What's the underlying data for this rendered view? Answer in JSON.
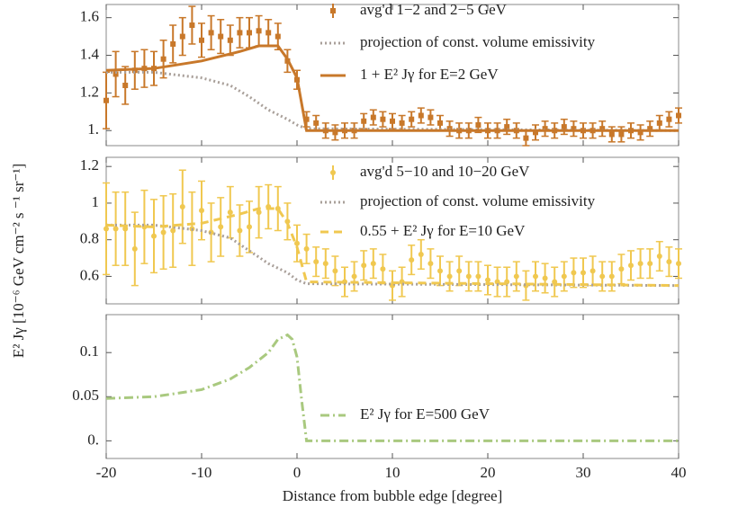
{
  "chart_data": [
    {
      "type": "line",
      "xlim": [
        -20,
        40
      ],
      "ylim": [
        0.92,
        1.67
      ],
      "yticks": [
        1.6,
        1.4,
        1.2,
        {
          "value": 1,
          "label": "1."
        }
      ],
      "series": [
        {
          "name": "avg'd 1−2 and 2−5 GeV",
          "color": "#c8782a",
          "style": "markers",
          "marker": "square",
          "x": [
            -20,
            -19,
            -18,
            -17,
            -16,
            -15,
            -14,
            -13,
            -12,
            -11,
            -10,
            -9,
            -8,
            -7,
            -6,
            -5,
            -4,
            -3,
            -2,
            -1,
            0,
            1,
            2,
            3,
            4,
            5,
            6,
            7,
            8,
            9,
            10,
            11,
            12,
            13,
            14,
            15,
            16,
            17,
            18,
            19,
            20,
            21,
            22,
            23,
            24,
            25,
            26,
            27,
            28,
            29,
            30,
            31,
            32,
            33,
            34,
            35,
            36,
            37,
            38,
            39,
            40
          ],
          "values": [
            1.16,
            1.3,
            1.24,
            1.32,
            1.33,
            1.33,
            1.38,
            1.46,
            1.5,
            1.56,
            1.48,
            1.52,
            1.5,
            1.48,
            1.52,
            1.52,
            1.53,
            1.52,
            1.5,
            1.37,
            1.27,
            1.06,
            1.04,
            1.0,
            0.99,
            1.0,
            1.0,
            1.05,
            1.07,
            1.06,
            1.05,
            1.04,
            1.06,
            1.08,
            1.07,
            1.04,
            1.01,
            1.0,
            1.0,
            1.03,
            1.0,
            1.0,
            1.02,
            1.0,
            0.96,
            0.99,
            1.01,
            1.0,
            1.02,
            1.01,
            1.0,
            1.0,
            1.01,
            0.98,
            0.98,
            1.0,
            0.99,
            1.01,
            1.04,
            1.06,
            1.08
          ],
          "errors": [
            0.15,
            0.12,
            0.1,
            0.1,
            0.1,
            0.09,
            0.1,
            0.1,
            0.1,
            0.1,
            0.09,
            0.09,
            0.09,
            0.08,
            0.08,
            0.08,
            0.08,
            0.07,
            0.07,
            0.06,
            0.05,
            0.04,
            0.04,
            0.04,
            0.04,
            0.04,
            0.04,
            0.04,
            0.04,
            0.04,
            0.04,
            0.04,
            0.04,
            0.04,
            0.04,
            0.04,
            0.04,
            0.04,
            0.04,
            0.04,
            0.04,
            0.04,
            0.04,
            0.04,
            0.04,
            0.04,
            0.04,
            0.04,
            0.04,
            0.04,
            0.04,
            0.04,
            0.04,
            0.04,
            0.04,
            0.04,
            0.04,
            0.04,
            0.04,
            0.04,
            0.04
          ]
        },
        {
          "name": "projection of const. volume emissivity",
          "color": "#a9a09a",
          "style": "dotted",
          "x": [
            -20,
            -15,
            -10,
            -7,
            -5,
            -3,
            -1,
            0,
            1,
            40
          ],
          "values": [
            1.31,
            1.31,
            1.28,
            1.24,
            1.18,
            1.11,
            1.06,
            1.03,
            1.01,
            1.0
          ]
        },
        {
          "name": "1 + E² Jγ for E=2 GeV",
          "color": "#c8782a",
          "style": "solid",
          "x": [
            -20,
            -15,
            -10,
            -6,
            -4,
            -2,
            -1,
            0,
            1,
            40
          ],
          "values": [
            1.32,
            1.33,
            1.37,
            1.42,
            1.45,
            1.45,
            1.38,
            1.28,
            1.0,
            1.0
          ]
        }
      ]
    },
    {
      "type": "line",
      "xlim": [
        -20,
        40
      ],
      "ylim": [
        0.45,
        1.25
      ],
      "yticks": [
        1.2,
        1,
        0.8,
        0.6
      ],
      "ylabel": "E² Jγ [10⁻⁶ GeV cm⁻² s ⁻¹ sr⁻¹]",
      "series": [
        {
          "name": "avg'd 5−10 and 10−20 GeV",
          "color": "#f0c850",
          "style": "markers",
          "marker": "circle",
          "x": [
            -20,
            -19,
            -18,
            -17,
            -16,
            -15,
            -14,
            -13,
            -12,
            -11,
            -10,
            -9,
            -8,
            -7,
            -6,
            -5,
            -4,
            -3,
            -2,
            -1,
            0,
            1,
            2,
            3,
            4,
            5,
            6,
            7,
            8,
            9,
            10,
            11,
            12,
            13,
            14,
            15,
            16,
            17,
            18,
            19,
            20,
            21,
            22,
            23,
            24,
            25,
            26,
            27,
            28,
            29,
            30,
            31,
            32,
            33,
            34,
            35,
            36,
            37,
            38,
            39,
            40
          ],
          "values": [
            0.86,
            0.86,
            0.86,
            0.75,
            0.87,
            0.82,
            0.84,
            0.85,
            0.98,
            0.86,
            0.96,
            0.84,
            0.87,
            0.95,
            0.85,
            0.87,
            0.95,
            0.98,
            0.97,
            0.9,
            0.78,
            0.75,
            0.68,
            0.67,
            0.63,
            0.57,
            0.6,
            0.66,
            0.67,
            0.64,
            0.55,
            0.57,
            0.69,
            0.72,
            0.67,
            0.63,
            0.6,
            0.63,
            0.6,
            0.6,
            0.58,
            0.57,
            0.57,
            0.6,
            0.55,
            0.6,
            0.59,
            0.57,
            0.6,
            0.62,
            0.62,
            0.63,
            0.6,
            0.6,
            0.64,
            0.66,
            0.67,
            0.67,
            0.71,
            0.68,
            0.67
          ],
          "errors": [
            0.25,
            0.2,
            0.2,
            0.2,
            0.2,
            0.2,
            0.2,
            0.2,
            0.2,
            0.2,
            0.16,
            0.16,
            0.16,
            0.14,
            0.14,
            0.14,
            0.14,
            0.12,
            0.12,
            0.1,
            0.1,
            0.08,
            0.08,
            0.08,
            0.08,
            0.08,
            0.08,
            0.08,
            0.08,
            0.08,
            0.08,
            0.08,
            0.08,
            0.08,
            0.08,
            0.08,
            0.08,
            0.08,
            0.08,
            0.08,
            0.08,
            0.08,
            0.08,
            0.08,
            0.08,
            0.08,
            0.08,
            0.08,
            0.08,
            0.08,
            0.08,
            0.08,
            0.08,
            0.08,
            0.08,
            0.08,
            0.08,
            0.08,
            0.08,
            0.08,
            0.08
          ]
        },
        {
          "name": "projection of const. volume emissivity",
          "color": "#a9a09a",
          "style": "dotted",
          "x": [
            -20,
            -15,
            -10,
            -7,
            -5,
            -3,
            -1,
            0,
            1,
            40
          ],
          "values": [
            0.88,
            0.88,
            0.85,
            0.81,
            0.74,
            0.67,
            0.62,
            0.58,
            0.56,
            0.55
          ]
        },
        {
          "name": "0.55 + E² Jγ for E=10 GeV",
          "color": "#f0c850",
          "style": "dashed",
          "x": [
            -20,
            -15,
            -10,
            -6,
            -4,
            -2,
            -1,
            0,
            1,
            40
          ],
          "values": [
            0.88,
            0.87,
            0.89,
            0.94,
            0.97,
            0.97,
            0.89,
            0.76,
            0.57,
            0.55
          ]
        }
      ]
    },
    {
      "type": "line",
      "xlim": [
        -20,
        40
      ],
      "ylim": [
        -0.02,
        0.143
      ],
      "yticks": [
        0.1,
        0.05,
        {
          "value": 0,
          "label": "0."
        }
      ],
      "xticks": [
        -20,
        -10,
        0,
        10,
        20,
        30,
        40
      ],
      "xlabel": "Distance from bubble edge [degree]",
      "series": [
        {
          "name": "E² Jγ for E=500 GeV",
          "color": "#a9c97f",
          "style": "dashdot",
          "x": [
            -20,
            -15,
            -10,
            -7,
            -5,
            -3,
            -2,
            -1,
            -0.5,
            0,
            0.5,
            1,
            40
          ],
          "values": [
            0.048,
            0.05,
            0.058,
            0.07,
            0.083,
            0.1,
            0.115,
            0.12,
            0.115,
            0.095,
            0.045,
            0,
            0
          ]
        }
      ]
    }
  ]
}
